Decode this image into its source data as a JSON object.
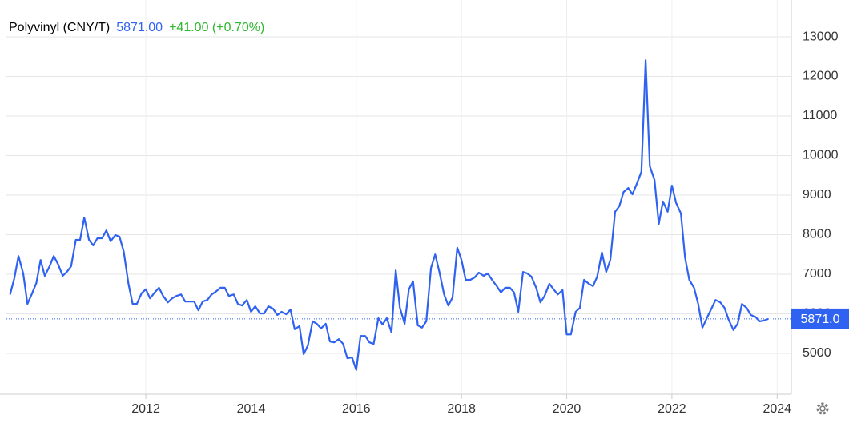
{
  "chart_data": {
    "type": "line",
    "title": "Polyvinyl (CNY/T)",
    "price": "5871.00",
    "change": "+41.00 (+0.70%)",
    "last_label": "5871.0",
    "color": "#2f62f0",
    "price_color": "#2f62f0",
    "change_color": "#2db82d",
    "grid": true,
    "xlim": [
      2009.35,
      2024.27
    ],
    "xticks": [
      2012,
      2014,
      2016,
      2018,
      2020,
      2022,
      2024
    ],
    "ylim": [
      3970,
      13930
    ],
    "yticks": [
      5000,
      6000,
      7000,
      8000,
      9000,
      10000,
      11000,
      12000,
      13000
    ],
    "x": [
      2009.42,
      2009.5,
      2009.58,
      2009.67,
      2009.75,
      2009.83,
      2009.92,
      2010.0,
      2010.08,
      2010.17,
      2010.25,
      2010.33,
      2010.42,
      2010.5,
      2010.58,
      2010.67,
      2010.75,
      2010.83,
      2010.92,
      2011.0,
      2011.08,
      2011.17,
      2011.25,
      2011.33,
      2011.42,
      2011.5,
      2011.58,
      2011.67,
      2011.75,
      2011.83,
      2011.92,
      2012.0,
      2012.08,
      2012.17,
      2012.25,
      2012.33,
      2012.42,
      2012.5,
      2012.58,
      2012.67,
      2012.75,
      2012.83,
      2012.92,
      2013.0,
      2013.08,
      2013.17,
      2013.25,
      2013.33,
      2013.42,
      2013.5,
      2013.58,
      2013.67,
      2013.75,
      2013.83,
      2013.92,
      2014.0,
      2014.08,
      2014.17,
      2014.25,
      2014.33,
      2014.42,
      2014.5,
      2014.58,
      2014.67,
      2014.75,
      2014.83,
      2014.92,
      2015.0,
      2015.08,
      2015.17,
      2015.25,
      2015.33,
      2015.42,
      2015.5,
      2015.58,
      2015.67,
      2015.75,
      2015.83,
      2015.92,
      2016.0,
      2016.08,
      2016.17,
      2016.25,
      2016.33,
      2016.42,
      2016.5,
      2016.58,
      2016.67,
      2016.75,
      2016.83,
      2016.92,
      2017.0,
      2017.08,
      2017.17,
      2017.25,
      2017.33,
      2017.42,
      2017.5,
      2017.58,
      2017.67,
      2017.75,
      2017.83,
      2017.92,
      2018.0,
      2018.08,
      2018.17,
      2018.25,
      2018.33,
      2018.42,
      2018.5,
      2018.58,
      2018.67,
      2018.75,
      2018.83,
      2018.92,
      2019.0,
      2019.08,
      2019.17,
      2019.25,
      2019.33,
      2019.42,
      2019.5,
      2019.58,
      2019.67,
      2019.75,
      2019.83,
      2019.92,
      2020.0,
      2020.08,
      2020.17,
      2020.25,
      2020.33,
      2020.42,
      2020.5,
      2020.58,
      2020.67,
      2020.75,
      2020.83,
      2020.92,
      2021.0,
      2021.08,
      2021.17,
      2021.25,
      2021.33,
      2021.42,
      2021.5,
      2021.58,
      2021.67,
      2021.75,
      2021.83,
      2021.92,
      2022.0,
      2022.08,
      2022.17,
      2022.25,
      2022.33,
      2022.42,
      2022.5,
      2022.58,
      2022.67,
      2022.75,
      2022.83,
      2022.92,
      2023.0,
      2023.08,
      2023.17,
      2023.25,
      2023.33,
      2023.42,
      2023.5,
      2023.58,
      2023.67,
      2023.75,
      2023.83
    ],
    "values": [
      6490,
      6900,
      7460,
      7020,
      6250,
      6490,
      6780,
      7360,
      6960,
      7200,
      7460,
      7260,
      6960,
      7060,
      7200,
      7870,
      7870,
      8430,
      7870,
      7730,
      7910,
      7910,
      8110,
      7830,
      7990,
      7950,
      7570,
      6760,
      6250,
      6250,
      6520,
      6620,
      6390,
      6540,
      6660,
      6450,
      6290,
      6390,
      6450,
      6490,
      6310,
      6310,
      6310,
      6090,
      6310,
      6350,
      6490,
      6560,
      6660,
      6660,
      6450,
      6490,
      6250,
      6210,
      6350,
      6050,
      6190,
      6010,
      6010,
      6190,
      6130,
      5970,
      6050,
      5990,
      6110,
      5610,
      5690,
      4980,
      5200,
      5810,
      5750,
      5630,
      5750,
      5300,
      5280,
      5360,
      5240,
      4880,
      4900,
      4580,
      5440,
      5440,
      5280,
      5240,
      5890,
      5730,
      5890,
      5530,
      7100,
      6150,
      5750,
      6620,
      6820,
      5710,
      5650,
      5810,
      7160,
      7500,
      7060,
      6490,
      6210,
      6410,
      7670,
      7360,
      6860,
      6860,
      6920,
      7040,
      6960,
      7020,
      6860,
      6700,
      6540,
      6660,
      6660,
      6540,
      6050,
      7060,
      7020,
      6940,
      6660,
      6290,
      6450,
      6760,
      6620,
      6490,
      6600,
      5480,
      5480,
      6050,
      6150,
      6860,
      6760,
      6700,
      6940,
      7550,
      7060,
      7360,
      8580,
      8720,
      9080,
      9180,
      9020,
      9280,
      9590,
      12410,
      9730,
      9380,
      8270,
      8840,
      8580,
      9240,
      8800,
      8540,
      7420,
      6860,
      6660,
      6250,
      5650,
      5910,
      6130,
      6350,
      6290,
      6150,
      5850,
      5590,
      5750,
      6250,
      6150,
      5970,
      5930,
      5810,
      5830,
      5871
    ]
  }
}
